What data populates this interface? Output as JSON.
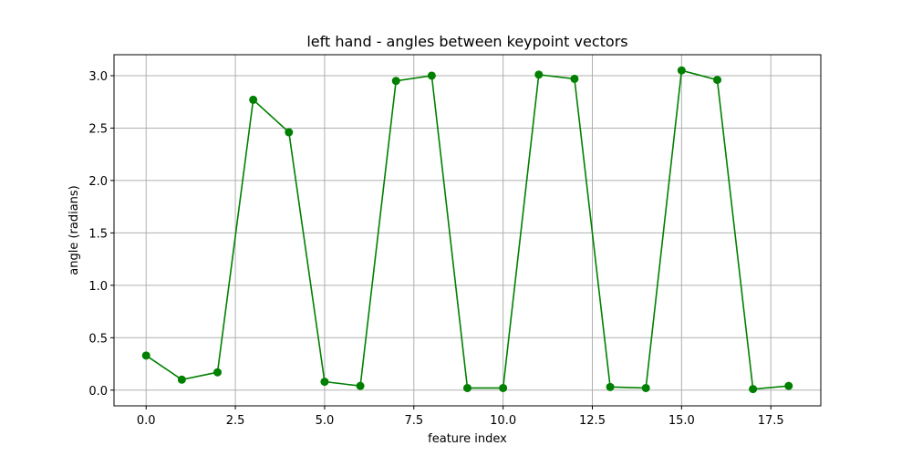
{
  "chart_data": {
    "type": "line",
    "title": "left hand - angles between keypoint vectors",
    "xlabel": "feature index",
    "ylabel": "angle (radians)",
    "xlim": [
      -0.9,
      18.9
    ],
    "ylim": [
      -0.15,
      3.2
    ],
    "x_ticks": [
      0.0,
      2.5,
      5.0,
      7.5,
      10.0,
      12.5,
      15.0,
      17.5
    ],
    "x_tick_labels": [
      "0.0",
      "2.5",
      "5.0",
      "7.5",
      "10.0",
      "12.5",
      "15.0",
      "17.5"
    ],
    "y_ticks": [
      0.0,
      0.5,
      1.0,
      1.5,
      2.0,
      2.5,
      3.0
    ],
    "y_tick_labels": [
      "0.0",
      "0.5",
      "1.0",
      "1.5",
      "2.0",
      "2.5",
      "3.0"
    ],
    "grid": true,
    "color": "#008000",
    "marker": "circle",
    "x": [
      0,
      1,
      2,
      3,
      4,
      5,
      6,
      7,
      8,
      9,
      10,
      11,
      12,
      13,
      14,
      15,
      16,
      17,
      18
    ],
    "y": [
      0.33,
      0.1,
      0.17,
      2.77,
      2.46,
      0.08,
      0.04,
      2.95,
      3.0,
      0.02,
      0.02,
      3.01,
      2.97,
      0.03,
      0.02,
      3.05,
      2.96,
      0.01,
      0.04
    ]
  }
}
